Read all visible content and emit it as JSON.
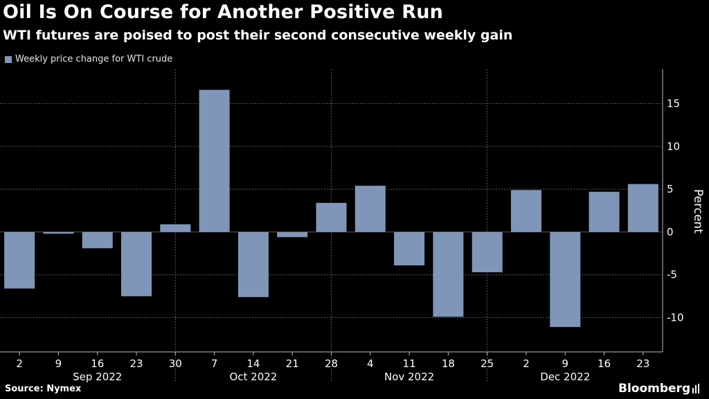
{
  "header": {
    "title": "Oil Is On Course for Another Positive Run",
    "subtitle": "WTI futures are poised to post their second consecutive weekly gain"
  },
  "footer": {
    "source": "Source: Nymex",
    "brand": "Bloomberg"
  },
  "colors": {
    "bar": "#7f96b8",
    "gridline": "#5a5a5a",
    "axis": "#bdbdbd",
    "text": "#ffffff"
  },
  "chart_data": {
    "type": "bar",
    "title": "Oil Is On Course for Another Positive Run",
    "subtitle": "WTI futures are poised to post their second consecutive weekly gain",
    "xlabel": "",
    "ylabel": "Percent",
    "ylim": [
      -14,
      19
    ],
    "yticks": [
      -10,
      -5,
      0,
      5,
      10,
      15
    ],
    "ytick_labels": [
      "-10",
      "-5",
      "0",
      "5",
      "10",
      "15"
    ],
    "legend": [
      "Weekly price change for WTI crude"
    ],
    "legend_position": "top-left",
    "grid": true,
    "categories": [
      "2",
      "9",
      "16",
      "23",
      "30",
      "7",
      "14",
      "21",
      "28",
      "4",
      "11",
      "18",
      "25",
      "2",
      "9",
      "16",
      "23"
    ],
    "months": [
      {
        "label": "Sep 2022",
        "start": 0,
        "end": 4
      },
      {
        "label": "Oct 2022",
        "start": 4,
        "end": 8
      },
      {
        "label": "Nov 2022",
        "start": 8,
        "end": 12
      },
      {
        "label": "Dec 2022",
        "start": 12,
        "end": 16
      }
    ],
    "series": [
      {
        "name": "Weekly price change for WTI crude",
        "values": [
          -6.6,
          -0.2,
          -1.9,
          -7.5,
          0.9,
          16.6,
          -7.6,
          -0.6,
          3.4,
          5.4,
          -3.9,
          -9.9,
          -4.7,
          4.9,
          -11.1,
          4.7,
          5.6
        ]
      }
    ]
  }
}
